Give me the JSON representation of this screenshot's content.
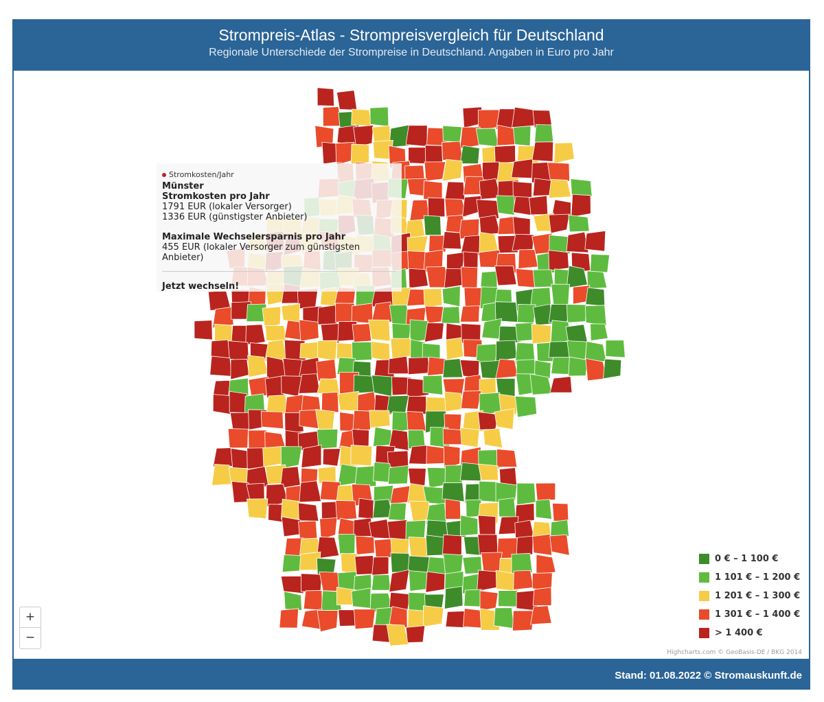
{
  "header": {
    "title": "Strompreis-Atlas - Strompreisvergleich für Deutschland",
    "subtitle": "Regionale Unterschiede der Strompreise in Deutschland. Angaben in Euro pro Jahr"
  },
  "tooltip": {
    "series": "Stromkosten/Jahr",
    "region": "Münster",
    "heading1": "Stromkosten pro Jahr",
    "line1": "1791 EUR (lokaler Versorger)",
    "line2": "1336 EUR (günstigster Anbieter)",
    "heading2": "Maximale Wechselersparnis pro Jahr",
    "line3": "455 EUR (lokaler Versorger zum günstigsten Anbieter)",
    "cta": "Jetzt wechseln!"
  },
  "legend": {
    "items": [
      {
        "label": "0 € – 1 100 €",
        "color": "#3e8b2a"
      },
      {
        "label": "1 101 € – 1 200 €",
        "color": "#5fbb3f"
      },
      {
        "label": "1 201 € – 1 300 €",
        "color": "#f6cc47"
      },
      {
        "label": "1 301 € – 1 400 €",
        "color": "#e94b2b"
      },
      {
        "label": "> 1 400 €",
        "color": "#b9241e"
      }
    ]
  },
  "zoom": {
    "plus": "+",
    "minus": "−"
  },
  "credits": "Highcharts.com © GeoBasis-DE / BKG 2014",
  "footer": "Stand: 01.08.2022 © Stromauskunft.de"
}
